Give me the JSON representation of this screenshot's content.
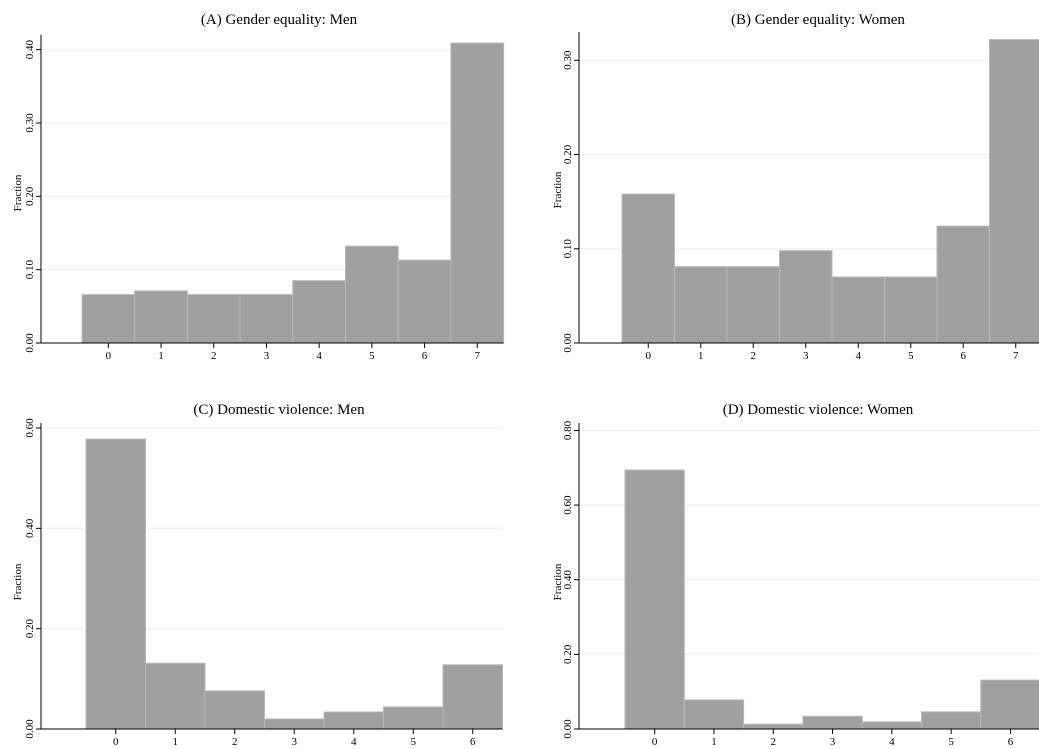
{
  "chart_data": [
    {
      "type": "bar",
      "title": "(A) Gender equality: Men",
      "ylabel": "Fraction",
      "xlabel": "",
      "categories": [
        "0",
        "1",
        "2",
        "3",
        "4",
        "5",
        "6",
        "7"
      ],
      "values": [
        0.066,
        0.071,
        0.066,
        0.066,
        0.085,
        0.132,
        0.113,
        0.409
      ],
      "ylim": [
        0,
        0.42
      ],
      "yticks": [
        "0.00",
        "0.10",
        "0.20",
        "0.30",
        "0.40"
      ],
      "ytick_values": [
        0,
        0.1,
        0.2,
        0.3,
        0.4
      ],
      "grid": true,
      "bar_color": "#a0a0a0"
    },
    {
      "type": "bar",
      "title": "(B) Gender equality: Women",
      "ylabel": "Fraction",
      "xlabel": "",
      "categories": [
        "0",
        "1",
        "2",
        "3",
        "4",
        "5",
        "6",
        "7"
      ],
      "values": [
        0.158,
        0.081,
        0.081,
        0.098,
        0.07,
        0.07,
        0.124,
        0.322
      ],
      "ylim": [
        0,
        0.33
      ],
      "yticks": [
        "0.00",
        "0.10",
        "0.20",
        "0.30"
      ],
      "ytick_values": [
        0,
        0.1,
        0.2,
        0.3
      ],
      "grid": true,
      "bar_color": "#a0a0a0"
    },
    {
      "type": "bar",
      "title": "(C) Domestic violence: Men",
      "ylabel": "Fraction",
      "xlabel": "",
      "categories": [
        "0",
        "1",
        "2",
        "3",
        "4",
        "5",
        "6"
      ],
      "values": [
        0.578,
        0.131,
        0.076,
        0.02,
        0.034,
        0.044,
        0.128
      ],
      "ylim": [
        0,
        0.61
      ],
      "yticks": [
        "0.00",
        "0.20",
        "0.40",
        "0.60"
      ],
      "ytick_values": [
        0,
        0.2,
        0.4,
        0.6
      ],
      "grid": true,
      "bar_color": "#a0a0a0"
    },
    {
      "type": "bar",
      "title": "(D) Domestic violence: Women",
      "ylabel": "Fraction",
      "xlabel": "",
      "categories": [
        "0",
        "1",
        "2",
        "3",
        "4",
        "5",
        "6"
      ],
      "values": [
        0.694,
        0.078,
        0.013,
        0.034,
        0.019,
        0.046,
        0.131
      ],
      "ylim": [
        0,
        0.82
      ],
      "yticks": [
        "0.00",
        "0.20",
        "0.40",
        "0.60",
        "0.80"
      ],
      "ytick_values": [
        0,
        0.2,
        0.4,
        0.6,
        0.8
      ],
      "grid": true,
      "bar_color": "#a0a0a0"
    }
  ]
}
